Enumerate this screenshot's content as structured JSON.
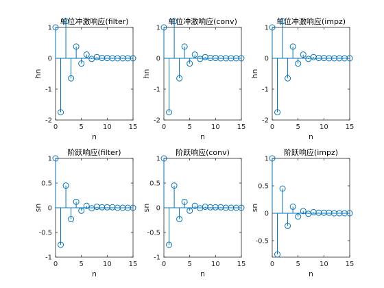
{
  "colors": {
    "stem": "#0072BD",
    "axis": "#262626",
    "background": "#ffffff"
  },
  "chart_data": [
    {
      "type": "stem",
      "title": "单位冲激响应(filter)",
      "xlabel": "n",
      "ylabel": "hn",
      "xlim": [
        0,
        15
      ],
      "ylim": [
        -2,
        1
      ],
      "xticks": [
        0,
        5,
        10,
        15
      ],
      "yticks": [
        -2,
        -1,
        0,
        1
      ],
      "ytick_labels": [
        "-2",
        "-1",
        "0",
        "1"
      ],
      "x": [
        0,
        1,
        2,
        3,
        4,
        5,
        6,
        7,
        8,
        9,
        10,
        11,
        12,
        13,
        14,
        15
      ],
      "values": [
        1,
        -1.75,
        1.2,
        -0.65,
        0.38,
        -0.17,
        0.12,
        -0.02,
        0.04,
        0.01,
        0.01,
        0,
        0,
        0,
        0,
        0
      ]
    },
    {
      "type": "stem",
      "title": "单位冲激响应(conv)",
      "xlabel": "n",
      "ylabel": "hn",
      "xlim": [
        0,
        15
      ],
      "ylim": [
        -2,
        1
      ],
      "xticks": [
        0,
        5,
        10,
        15
      ],
      "yticks": [
        -2,
        -1,
        0,
        1
      ],
      "ytick_labels": [
        "-2",
        "-1",
        "0",
        "1"
      ],
      "x": [
        0,
        1,
        2,
        3,
        4,
        5,
        6,
        7,
        8,
        9,
        10,
        11,
        12,
        13,
        14,
        15
      ],
      "values": [
        1,
        -1.75,
        1.2,
        -0.65,
        0.38,
        -0.17,
        0.12,
        -0.02,
        0.04,
        0.01,
        0.01,
        0,
        0,
        0,
        0,
        0
      ]
    },
    {
      "type": "stem",
      "title": "单位冲激响应(impz)",
      "xlabel": "n",
      "ylabel": "hn",
      "xlim": [
        0,
        15
      ],
      "ylim": [
        -2,
        1
      ],
      "xticks": [
        0,
        5,
        10,
        15
      ],
      "yticks": [
        -2,
        -1,
        0,
        1
      ],
      "ytick_labels": [
        "-2",
        "-1",
        "0",
        "1"
      ],
      "x": [
        0,
        1,
        2,
        3,
        4,
        5,
        6,
        7,
        8,
        9,
        10,
        11,
        12,
        13,
        14,
        15
      ],
      "values": [
        1,
        -1.75,
        1.2,
        -0.65,
        0.38,
        -0.17,
        0.12,
        -0.02,
        0.04,
        0.01,
        0.01,
        0,
        0,
        0,
        0,
        0
      ]
    },
    {
      "type": "stem",
      "title": "阶跃响应(filter)",
      "xlabel": "n",
      "ylabel": "sn",
      "xlim": [
        0,
        15
      ],
      "ylim": [
        -1,
        1
      ],
      "xticks": [
        0,
        5,
        10,
        15
      ],
      "yticks": [
        -1,
        -0.5,
        0,
        0.5,
        1
      ],
      "ytick_labels": [
        "-1",
        "-0.5",
        "0",
        "0.5",
        "1"
      ],
      "x": [
        0,
        1,
        2,
        3,
        4,
        5,
        6,
        7,
        8,
        9,
        10,
        11,
        12,
        13,
        14,
        15
      ],
      "values": [
        1,
        -0.75,
        0.45,
        -0.23,
        0.12,
        -0.06,
        0.04,
        -0.01,
        0.02,
        0.01,
        0.01,
        0.01,
        0,
        0,
        0,
        0
      ]
    },
    {
      "type": "stem",
      "title": "阶跃响应(conv)",
      "xlabel": "n",
      "ylabel": "sn",
      "xlim": [
        0,
        15
      ],
      "ylim": [
        -1,
        1
      ],
      "xticks": [
        0,
        5,
        10,
        15
      ],
      "yticks": [
        -1,
        -0.5,
        0,
        0.5,
        1
      ],
      "ytick_labels": [
        "-1",
        "-0.5",
        "0",
        "0.5",
        "1"
      ],
      "x": [
        0,
        1,
        2,
        3,
        4,
        5,
        6,
        7,
        8,
        9,
        10,
        11,
        12,
        13,
        14,
        15
      ],
      "values": [
        1,
        -0.75,
        0.45,
        -0.23,
        0.12,
        -0.06,
        0.04,
        -0.01,
        0.02,
        0.01,
        0.01,
        0.01,
        0,
        0,
        0,
        0
      ]
    },
    {
      "type": "stem",
      "title": "阶跃响应(impz)",
      "xlabel": "n",
      "ylabel": "sn",
      "xlim": [
        0,
        15
      ],
      "ylim": [
        -0.8,
        1
      ],
      "xticks": [
        0,
        5,
        10,
        15
      ],
      "yticks": [
        -0.5,
        0,
        0.5,
        1
      ],
      "ytick_labels": [
        "-0.5",
        "0",
        "0.5",
        "1"
      ],
      "x": [
        0,
        1,
        2,
        3,
        4,
        5,
        6,
        7,
        8,
        9,
        10,
        11,
        12,
        13,
        14,
        15
      ],
      "values": [
        1,
        -0.75,
        0.45,
        -0.23,
        0.12,
        -0.06,
        0.04,
        -0.01,
        0.02,
        0.01,
        0.01,
        0.01,
        0,
        0,
        0,
        0
      ]
    }
  ]
}
